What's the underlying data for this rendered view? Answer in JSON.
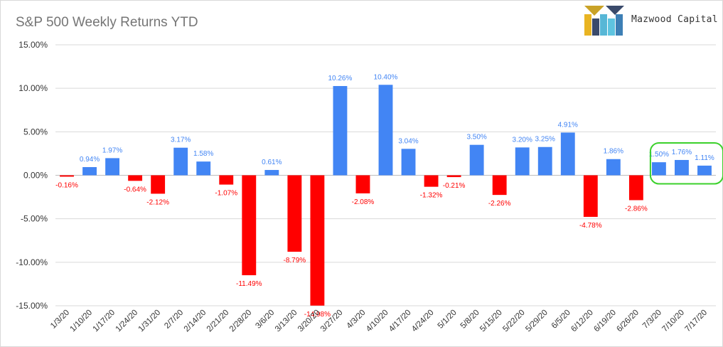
{
  "chart_data": {
    "type": "bar",
    "title": "S&P 500 Weekly Returns YTD",
    "xlabel": "",
    "ylabel": "",
    "ylim": [
      -15,
      15
    ],
    "yticks": [
      15,
      10,
      5,
      0,
      -5,
      -10,
      -15
    ],
    "ytick_labels": [
      "15.00%",
      "10.00%",
      "5.00%",
      "0.00%",
      "-5.00%",
      "-10.00%",
      "-15.00%"
    ],
    "grid": true,
    "categories": [
      "1/3/20",
      "1/10/20",
      "1/17/20",
      "1/24/20",
      "1/31/20",
      "2/7/20",
      "2/14/20",
      "2/21/20",
      "2/28/20",
      "3/6/20",
      "3/13/20",
      "3/20/20",
      "3/27/20",
      "4/3/20",
      "4/10/20",
      "4/17/20",
      "4/24/20",
      "5/1/20",
      "5/8/20",
      "5/15/20",
      "5/22/20",
      "5/29/20",
      "6/5/20",
      "6/12/20",
      "6/19/20",
      "6/26/20",
      "7/3/20",
      "7/10/20",
      "7/17/20"
    ],
    "values": [
      -0.16,
      0.94,
      1.97,
      -0.64,
      -2.12,
      3.17,
      1.58,
      -1.07,
      -11.49,
      0.61,
      -8.79,
      -14.98,
      10.26,
      -2.08,
      10.4,
      3.04,
      -1.32,
      -0.21,
      3.5,
      -2.26,
      3.2,
      3.25,
      4.91,
      -4.78,
      1.86,
      -2.86,
      1.5,
      1.76,
      1.11
    ],
    "data_labels": [
      "-0.16%",
      "0.94%",
      "1.97%",
      "-0.64%",
      "-2.12%",
      "3.17%",
      "1.58%",
      "-1.07%",
      "-11.49%",
      "0.61%",
      "-8.79%",
      "-14.98%",
      "10.26%",
      "-2.08%",
      "10.40%",
      "3.04%",
      "-1.32%",
      "-0.21%",
      "3.50%",
      "-2.26%",
      "3.20%",
      "3.25%",
      "4.91%",
      "-4.78%",
      "1.86%",
      "-2.86%",
      "1.50%",
      "1.76%",
      "1.11%"
    ],
    "colors": {
      "positive": "#4285f4",
      "negative": "#ff0000",
      "highlight": "#3bd12b",
      "grid": "#d9d9d9"
    },
    "highlight_categories": [
      "7/3/20",
      "7/10/20",
      "7/17/20"
    ]
  },
  "logo": {
    "text": "Mazwood Capital"
  }
}
